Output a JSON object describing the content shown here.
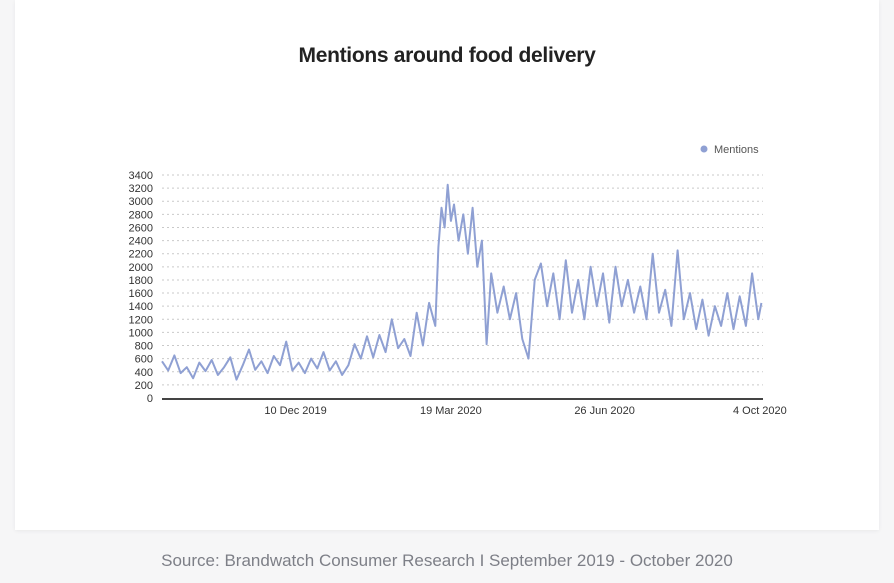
{
  "chart_data": {
    "type": "line",
    "title": "Mentions around food delivery",
    "xlabel": "",
    "ylabel": "",
    "ylim": [
      0,
      3400
    ],
    "yticks": [
      0,
      200,
      400,
      600,
      800,
      1000,
      1200,
      1400,
      1600,
      1800,
      2000,
      2200,
      2400,
      2600,
      2800,
      3000,
      3200,
      3400
    ],
    "xticks": [
      {
        "label": "10 Dec 2019",
        "date": "2019-12-10"
      },
      {
        "label": "19 Mar 2020",
        "date": "2020-03-19"
      },
      {
        "label": "26 Jun 2020",
        "date": "2020-06-26"
      },
      {
        "label": "4 Oct 2020",
        "date": "2020-10-04"
      }
    ],
    "xrange": [
      "2019-09-15",
      "2020-10-06"
    ],
    "grid": true,
    "legend": "top-right",
    "series": [
      {
        "name": "Mentions",
        "color": "#8fa0d3",
        "points": [
          [
            "2019-09-15",
            560
          ],
          [
            "2019-09-19",
            420
          ],
          [
            "2019-09-23",
            650
          ],
          [
            "2019-09-27",
            380
          ],
          [
            "2019-10-01",
            470
          ],
          [
            "2019-10-05",
            300
          ],
          [
            "2019-10-09",
            540
          ],
          [
            "2019-10-13",
            410
          ],
          [
            "2019-10-17",
            580
          ],
          [
            "2019-10-21",
            350
          ],
          [
            "2019-10-25",
            470
          ],
          [
            "2019-10-29",
            620
          ],
          [
            "2019-11-02",
            280
          ],
          [
            "2019-11-06",
            500
          ],
          [
            "2019-11-10",
            740
          ],
          [
            "2019-11-14",
            430
          ],
          [
            "2019-11-18",
            560
          ],
          [
            "2019-11-22",
            380
          ],
          [
            "2019-11-26",
            640
          ],
          [
            "2019-11-30",
            500
          ],
          [
            "2019-12-04",
            860
          ],
          [
            "2019-12-08",
            420
          ],
          [
            "2019-12-12",
            540
          ],
          [
            "2019-12-16",
            380
          ],
          [
            "2019-12-20",
            600
          ],
          [
            "2019-12-24",
            450
          ],
          [
            "2019-12-28",
            700
          ],
          [
            "2020-01-01",
            420
          ],
          [
            "2020-01-05",
            560
          ],
          [
            "2020-01-09",
            350
          ],
          [
            "2020-01-13",
            500
          ],
          [
            "2020-01-17",
            820
          ],
          [
            "2020-01-21",
            600
          ],
          [
            "2020-01-25",
            940
          ],
          [
            "2020-01-29",
            620
          ],
          [
            "2020-02-02",
            960
          ],
          [
            "2020-02-06",
            700
          ],
          [
            "2020-02-10",
            1200
          ],
          [
            "2020-02-14",
            760
          ],
          [
            "2020-02-18",
            900
          ],
          [
            "2020-02-22",
            640
          ],
          [
            "2020-02-26",
            1300
          ],
          [
            "2020-03-01",
            800
          ],
          [
            "2020-03-05",
            1450
          ],
          [
            "2020-03-09",
            1100
          ],
          [
            "2020-03-11",
            2300
          ],
          [
            "2020-03-13",
            2900
          ],
          [
            "2020-03-15",
            2600
          ],
          [
            "2020-03-17",
            3250
          ],
          [
            "2020-03-19",
            2700
          ],
          [
            "2020-03-21",
            2950
          ],
          [
            "2020-03-24",
            2400
          ],
          [
            "2020-03-27",
            2800
          ],
          [
            "2020-03-30",
            2200
          ],
          [
            "2020-04-02",
            2900
          ],
          [
            "2020-04-05",
            2000
          ],
          [
            "2020-04-08",
            2400
          ],
          [
            "2020-04-11",
            820
          ],
          [
            "2020-04-14",
            1900
          ],
          [
            "2020-04-18",
            1300
          ],
          [
            "2020-04-22",
            1700
          ],
          [
            "2020-04-26",
            1200
          ],
          [
            "2020-04-30",
            1600
          ],
          [
            "2020-05-04",
            900
          ],
          [
            "2020-05-08",
            600
          ],
          [
            "2020-05-12",
            1800
          ],
          [
            "2020-05-16",
            2050
          ],
          [
            "2020-05-20",
            1400
          ],
          [
            "2020-05-24",
            1900
          ],
          [
            "2020-05-28",
            1200
          ],
          [
            "2020-06-01",
            2100
          ],
          [
            "2020-06-05",
            1300
          ],
          [
            "2020-06-09",
            1800
          ],
          [
            "2020-06-13",
            1200
          ],
          [
            "2020-06-17",
            2000
          ],
          [
            "2020-06-21",
            1400
          ],
          [
            "2020-06-25",
            1900
          ],
          [
            "2020-06-29",
            1150
          ],
          [
            "2020-07-03",
            2000
          ],
          [
            "2020-07-07",
            1400
          ],
          [
            "2020-07-11",
            1800
          ],
          [
            "2020-07-15",
            1300
          ],
          [
            "2020-07-19",
            1700
          ],
          [
            "2020-07-23",
            1200
          ],
          [
            "2020-07-27",
            2200
          ],
          [
            "2020-07-31",
            1300
          ],
          [
            "2020-08-04",
            1650
          ],
          [
            "2020-08-08",
            1100
          ],
          [
            "2020-08-12",
            2250
          ],
          [
            "2020-08-16",
            1200
          ],
          [
            "2020-08-20",
            1600
          ],
          [
            "2020-08-24",
            1050
          ],
          [
            "2020-08-28",
            1500
          ],
          [
            "2020-09-01",
            950
          ],
          [
            "2020-09-05",
            1400
          ],
          [
            "2020-09-09",
            1100
          ],
          [
            "2020-09-13",
            1600
          ],
          [
            "2020-09-17",
            1050
          ],
          [
            "2020-09-21",
            1550
          ],
          [
            "2020-09-25",
            1100
          ],
          [
            "2020-09-29",
            1900
          ],
          [
            "2020-10-03",
            1200
          ],
          [
            "2020-10-05",
            1450
          ]
        ]
      }
    ]
  },
  "footer": {
    "source": "Source: Brandwatch Consumer Research I September 2019 - October 2020"
  }
}
